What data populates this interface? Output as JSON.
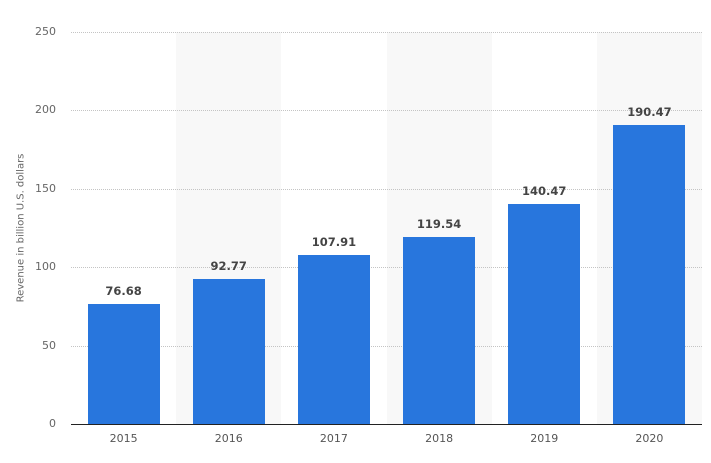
{
  "chart_data": {
    "type": "bar",
    "title": "",
    "xlabel": "",
    "ylabel": "Revenue in billion U.S. dollars",
    "categories": [
      "2015",
      "2016",
      "2017",
      "2018",
      "2019",
      "2020"
    ],
    "values": [
      76.68,
      92.77,
      107.91,
      119.54,
      140.47,
      190.47
    ],
    "value_labels": [
      "76.68",
      "92.77",
      "107.91",
      "119.54",
      "140.47",
      "190.47"
    ],
    "ylim": [
      0,
      250
    ],
    "yticks": [
      0,
      50,
      100,
      150,
      200,
      250
    ],
    "grid": true,
    "legend": null,
    "bar_color": "#2876dd",
    "band_color": "#f8f8f8"
  }
}
